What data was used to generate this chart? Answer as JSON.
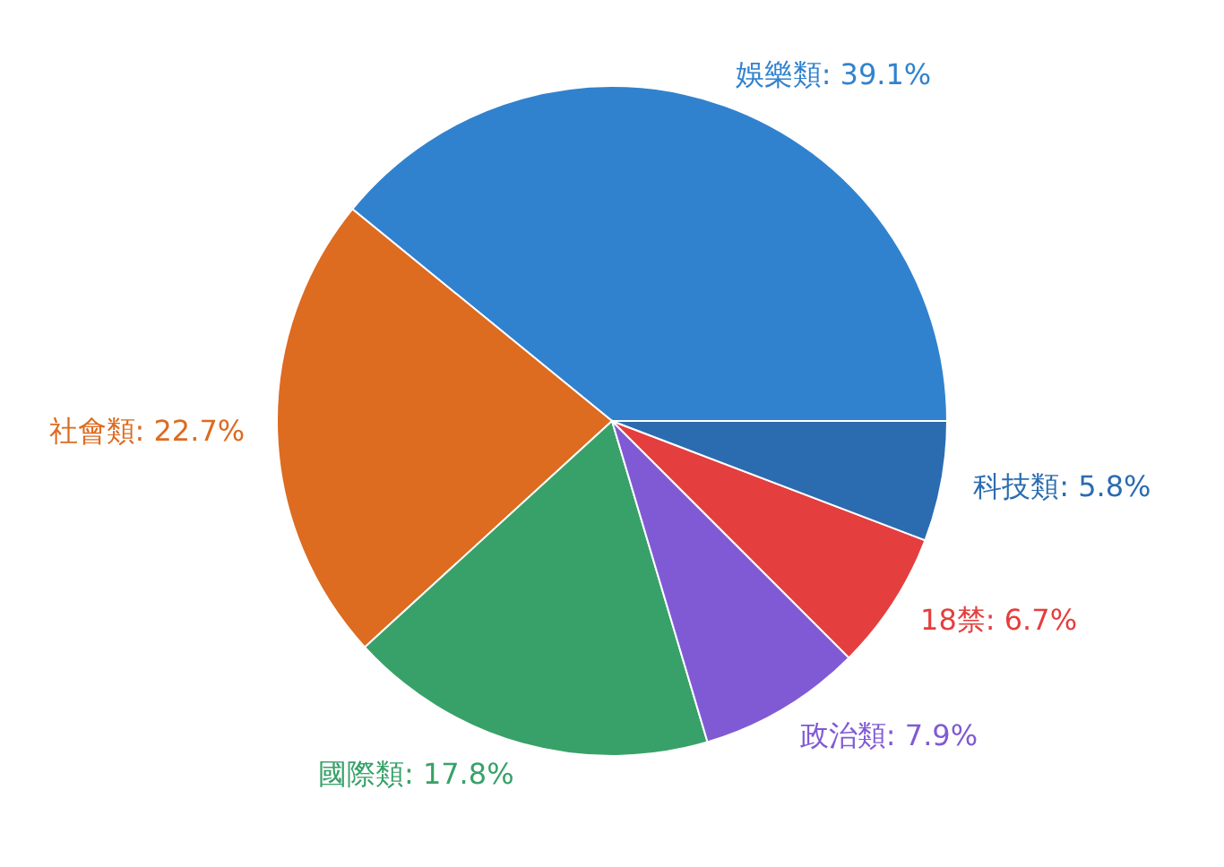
{
  "chart_data": {
    "type": "pie",
    "categories": [
      "娛樂類",
      "社會類",
      "國際類",
      "政治類",
      "18禁",
      "科技類"
    ],
    "values": [
      39.1,
      22.7,
      17.8,
      7.9,
      6.7,
      5.8
    ],
    "value_labels": [
      "39.1%",
      "22.7%",
      "17.8%",
      "7.9%",
      "6.7%",
      "5.8%"
    ],
    "colors": [
      "#3182ce",
      "#dd6b20",
      "#38a169",
      "#805ad5",
      "#e53e3e",
      "#2b6cb0"
    ]
  }
}
